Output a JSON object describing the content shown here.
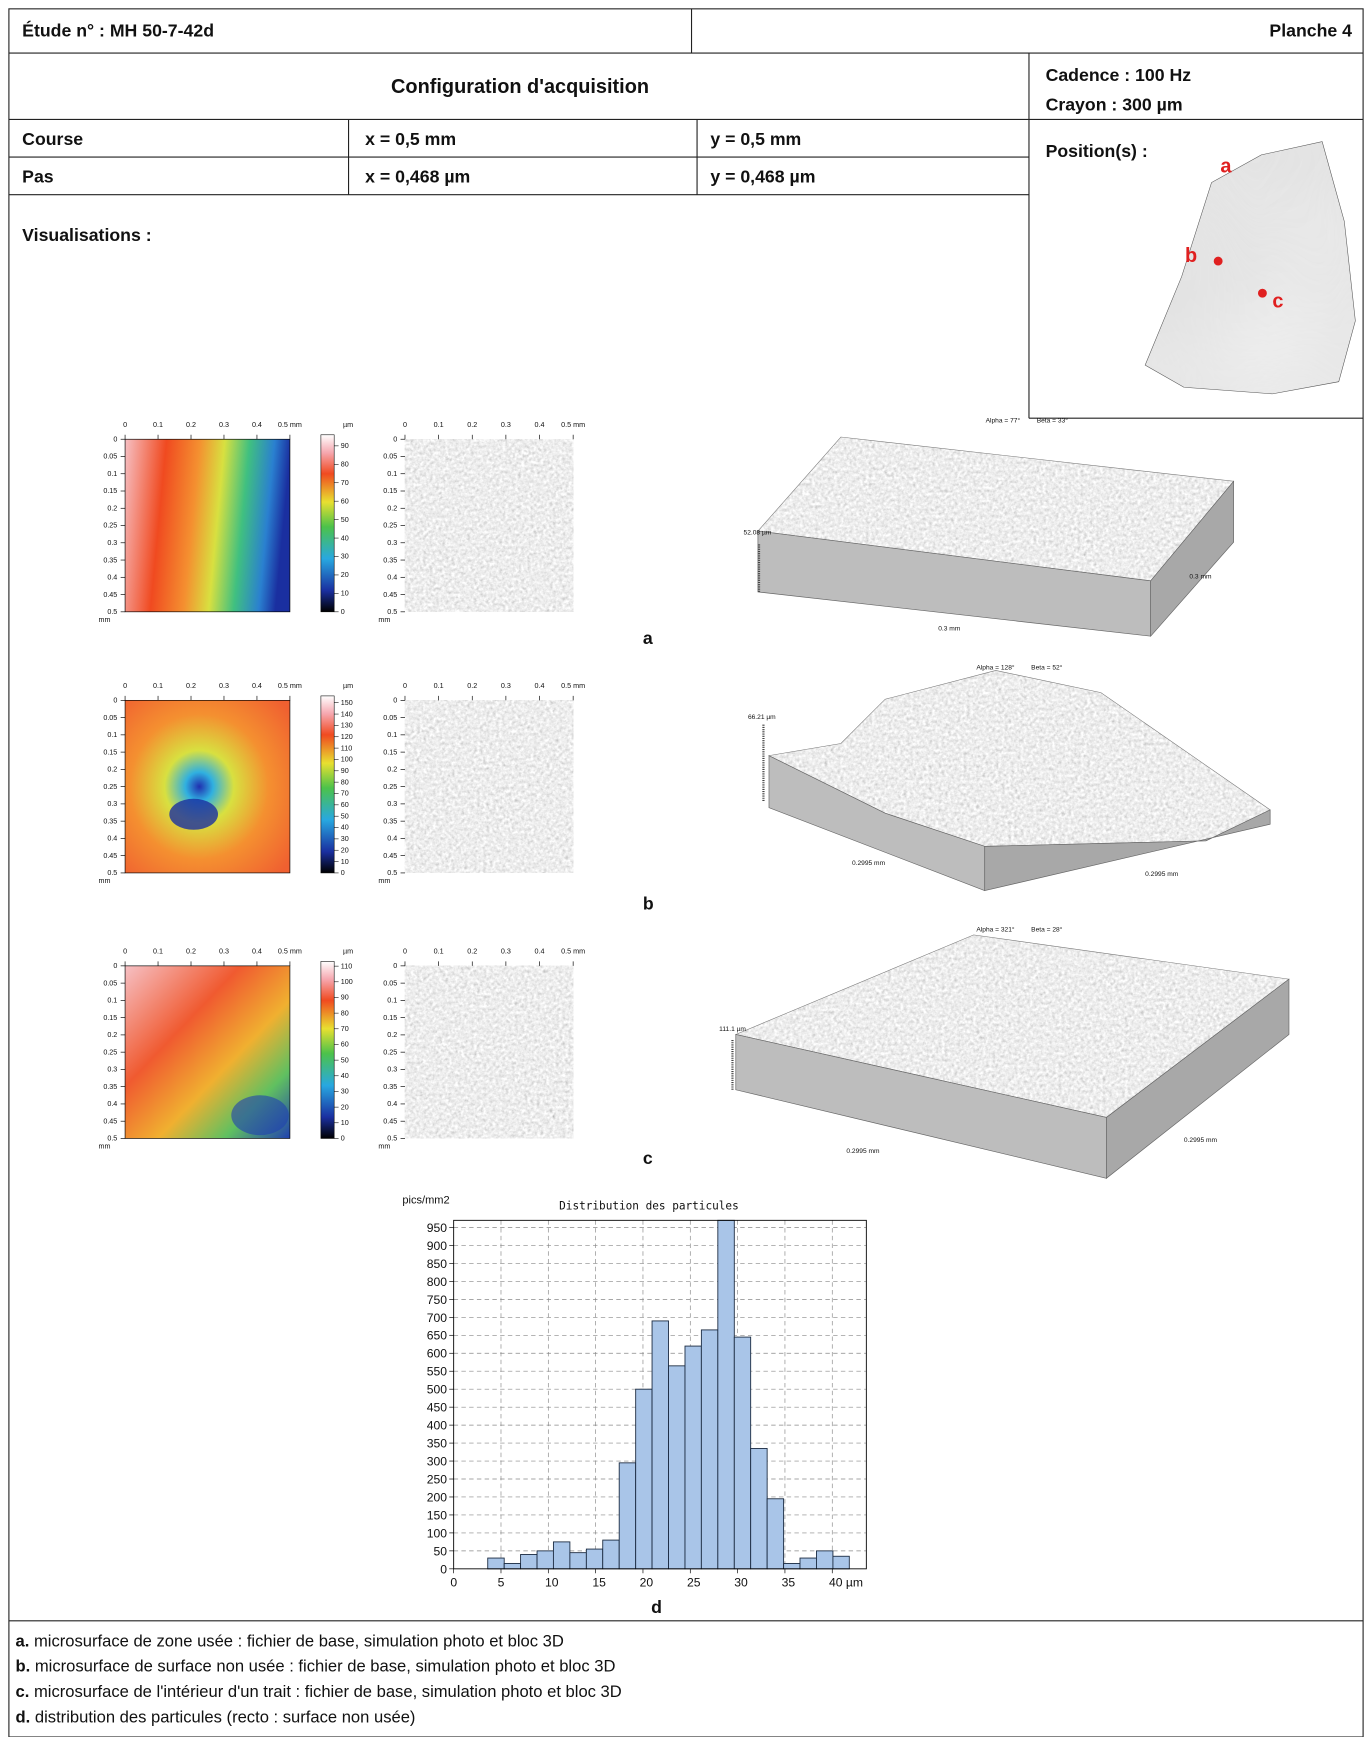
{
  "header": {
    "study": "Étude n° : MH 50-7-42d",
    "plate": "Planche 4"
  },
  "config": {
    "title": "Configuration d'acquisition",
    "rate": "Cadence : 100 Hz",
    "stylus": "Crayon : 300 µm"
  },
  "table": {
    "rows": [
      [
        "Course",
        "x = 0,5 mm",
        "y = 0,5 mm"
      ],
      [
        "Pas",
        "x = 0,468 µm",
        "y = 0,468 µm"
      ]
    ]
  },
  "position": {
    "title": "Position(s) :",
    "markers": [
      "a",
      "b",
      "c"
    ]
  },
  "visualisations": {
    "title": "Visualisations :",
    "map_lim": [
      0,
      0.5
    ],
    "map_xticks": [
      0,
      0.1,
      0.2,
      0.3,
      0.4,
      {
        "value": 0.5,
        "label": "0.5 mm"
      }
    ],
    "map_yticks": [
      0,
      0.05,
      0.1,
      0.15,
      0.2,
      0.25,
      0.3,
      0.35,
      0.4,
      0.45,
      0.5
    ],
    "map_unit": "mm",
    "colorbar_unit": "µm",
    "panels": [
      {
        "label": "a",
        "colorbar_lim": [
          0,
          96
        ],
        "colorbar_ticks": [
          0,
          10,
          20,
          30,
          40,
          50,
          60,
          70,
          80,
          90
        ],
        "alpha": "Alpha = 77°",
        "beta": "Beta = 33°",
        "height": "52.08 µm",
        "dims": [
          "0.3 mm",
          "0.3 mm"
        ]
      },
      {
        "label": "b",
        "colorbar_lim": [
          0,
          156
        ],
        "colorbar_ticks": [
          0,
          10,
          20,
          30,
          40,
          50,
          60,
          70,
          80,
          90,
          100,
          110,
          120,
          130,
          140,
          150
        ],
        "alpha": "Alpha = 128°",
        "beta": "Beta = 52°",
        "height": "66.21 µm",
        "dims": [
          "0.2995 mm",
          "0.2995 mm"
        ]
      },
      {
        "label": "c",
        "colorbar_lim": [
          0,
          113
        ],
        "colorbar_ticks": [
          0,
          10,
          20,
          30,
          40,
          50,
          60,
          70,
          80,
          90,
          100,
          110
        ],
        "alpha": "Alpha = 321°",
        "beta": "Beta = 28°",
        "height": "111.1 µm",
        "dims": [
          "0.2995 mm",
          "0.2995 mm"
        ]
      }
    ]
  },
  "chart_data": {
    "type": "histogram",
    "label": "d",
    "title": "Distribution des particules",
    "y_label": "pics/mm2",
    "bins": [
      3.6,
      5.34,
      7.07,
      8.81,
      10.54,
      12.28,
      14.02,
      15.75,
      17.49,
      19.23,
      20.96,
      22.7,
      24.44,
      26.17,
      27.91,
      29.65,
      31.38,
      33.12,
      34.86,
      36.59,
      38.33,
      40.07,
      41.8
    ],
    "values": [
      30,
      15,
      40,
      50,
      75,
      45,
      55,
      80,
      295,
      500,
      690,
      565,
      620,
      665,
      970,
      645,
      335,
      195,
      15,
      30,
      50,
      35
    ],
    "color": "#a9c5e8",
    "xlim": [
      0,
      43.6
    ],
    "ylim": [
      0,
      970
    ],
    "xticks": [
      0,
      5,
      10,
      15,
      20,
      25,
      30,
      35,
      {
        "value": 40,
        "label": "40 µm"
      }
    ],
    "yticks": [
      0,
      50,
      100,
      150,
      200,
      250,
      300,
      350,
      400,
      450,
      500,
      550,
      600,
      650,
      700,
      750,
      800,
      850,
      900,
      950
    ],
    "grid": true
  },
  "captions": [
    {
      "key": "a.",
      "text": " microsurface de zone usée : fichier de base, simulation photo et bloc 3D"
    },
    {
      "key": "b.",
      "text": " microsurface de surface non usée : fichier de base, simulation photo et bloc 3D"
    },
    {
      "key": "c.",
      "text": " microsurface de l'intérieur d'un trait : fichier de base, simulation photo et bloc 3D"
    },
    {
      "key": "d.",
      "text": " distribution des particules (recto : surface non usée)"
    }
  ]
}
